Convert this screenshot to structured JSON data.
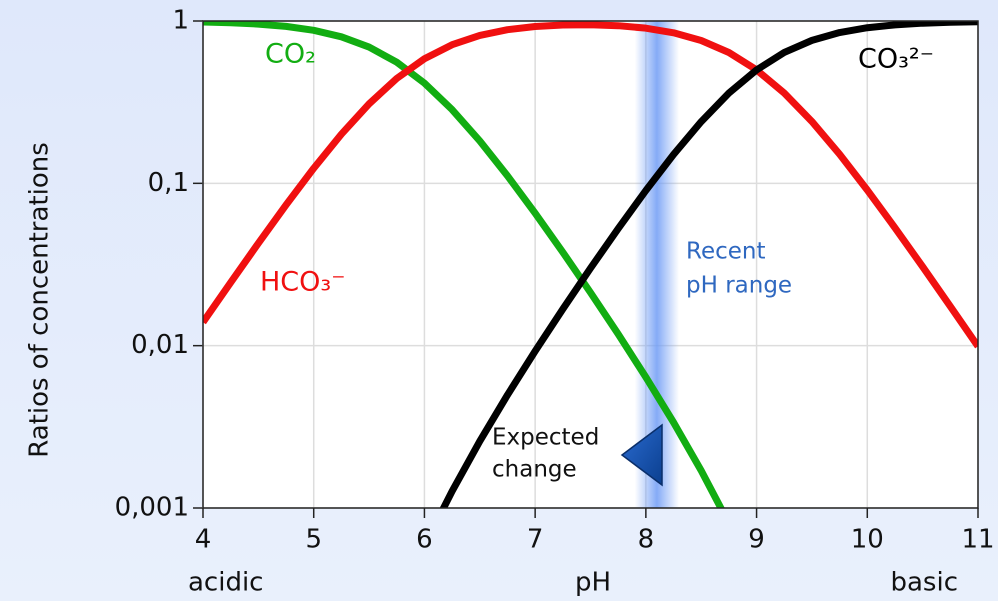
{
  "chart_data": {
    "type": "line",
    "ylabel": "Ratios of concentrations",
    "xlabel": "pH",
    "x_left_note": "acidic",
    "x_right_note": "basic",
    "x": [
      4,
      4.25,
      4.5,
      4.75,
      5,
      5.25,
      5.5,
      5.75,
      6,
      6.25,
      6.5,
      6.75,
      7,
      7.25,
      7.5,
      7.75,
      8,
      8.25,
      8.5,
      8.75,
      9,
      9.25,
      9.5,
      9.75,
      10,
      10.25,
      10.5,
      10.75,
      11
    ],
    "series": [
      {
        "name": "CO₂",
        "color": "#12ad12",
        "values": [
          0.9861,
          0.9755,
          0.9572,
          0.9264,
          0.8762,
          0.7992,
          0.6912,
          0.5572,
          0.4143,
          0.2844,
          0.1824,
          0.1113,
          0.0655,
          0.03764,
          0.02124,
          0.01178,
          0.006395,
          0.003368,
          0.001698,
          0.000805,
          null,
          null,
          null,
          null,
          null,
          null,
          null,
          null,
          null
        ]
      },
      {
        "name": "HCO₃⁻",
        "color": "#f01010",
        "values": [
          0.01393,
          0.0245,
          0.04276,
          0.07359,
          0.1238,
          0.2008,
          0.3087,
          0.4426,
          0.5852,
          0.7143,
          0.815,
          0.8838,
          0.9253,
          0.9455,
          0.9488,
          0.9356,
          0.9033,
          0.8461,
          0.7585,
          0.6395,
          0.4998,
          0.3599,
          0.2403,
          0.151,
          0.09091,
          0.05324,
          0.03065,
          0.01747,
          0.0099
        ]
      },
      {
        "name": "CO₃²⁻",
        "color": "#000000",
        "values": [
          null,
          null,
          null,
          null,
          null,
          null,
          null,
          null,
          0.000585,
          0.00127,
          0.00258,
          0.00497,
          0.00926,
          0.01681,
          0.03,
          0.05262,
          0.09033,
          0.1505,
          0.2399,
          0.3597,
          0.4998,
          0.64,
          0.7597,
          0.849,
          0.9091,
          0.9468,
          0.9694,
          0.9825,
          0.9901
        ]
      }
    ],
    "xlim": [
      4,
      11
    ],
    "xticks": [
      4,
      5,
      6,
      7,
      8,
      9,
      10,
      11
    ],
    "ylim": [
      0.001,
      1
    ],
    "yticks": [
      {
        "value": 0.001,
        "label": "0,001"
      },
      {
        "value": 0.01,
        "label": "0,01"
      },
      {
        "value": 0.1,
        "label": "0,1"
      },
      1
    ],
    "log_y": true,
    "grid": true,
    "band": {
      "xrange": [
        7.9,
        8.3
      ],
      "label_lines": [
        "Recent",
        "pH range"
      ],
      "color": "#6f9cf5"
    },
    "annotation_lines": [
      "Expected",
      "change"
    ]
  }
}
